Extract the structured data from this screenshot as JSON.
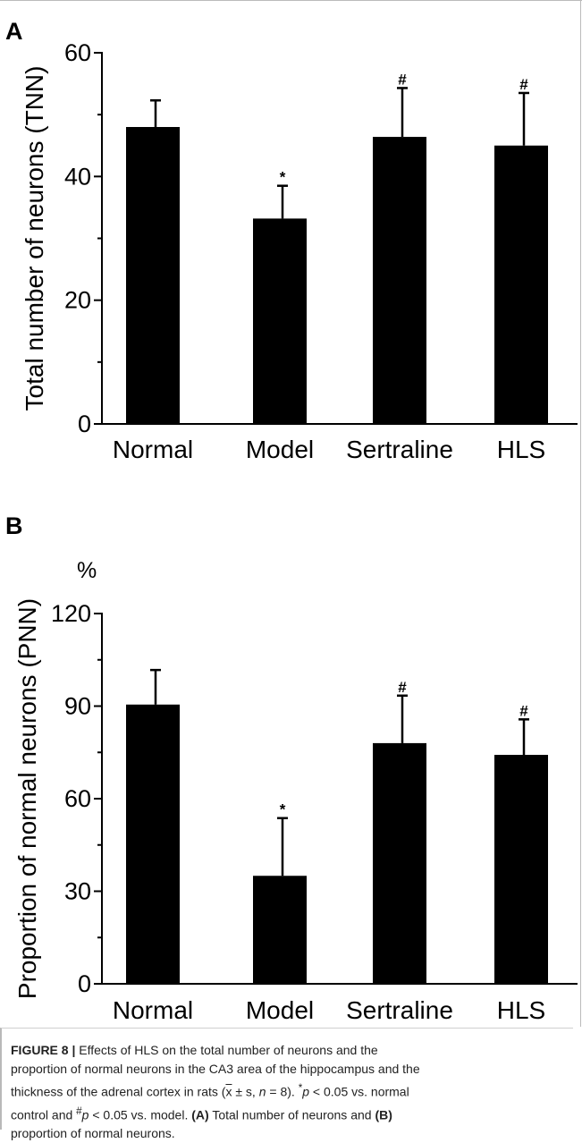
{
  "chart_data": [
    {
      "type": "bar",
      "panel": "A",
      "categories": [
        "Normal",
        "Model",
        "Sertraline",
        "HLS"
      ],
      "values": [
        48,
        33.2,
        46.4,
        45
      ],
      "errors": [
        4.3,
        5.3,
        7.9,
        8.5
      ],
      "annotations": [
        "",
        "*",
        "#",
        "#"
      ],
      "ylabel": "Total number of neurons (TNN)",
      "ylim": [
        0,
        60
      ],
      "yticks": [
        0,
        20,
        40,
        60
      ],
      "grid": false,
      "bar_color": "#000000"
    },
    {
      "type": "bar",
      "panel": "B",
      "categories": [
        "Normal",
        "Model",
        "Sertraline",
        "HLS"
      ],
      "values": [
        90.5,
        35,
        78,
        74.2
      ],
      "errors": [
        11.2,
        18.7,
        15.4,
        11.5
      ],
      "annotations": [
        "",
        "*",
        "#",
        "#"
      ],
      "ylabel": "Proportion of normal neurons (PNN)",
      "unit": "%",
      "ylim": [
        0,
        120
      ],
      "yticks": [
        0,
        30,
        60,
        90,
        120
      ],
      "grid": false,
      "bar_color": "#000000"
    }
  ],
  "caption": {
    "figure_label": "FIGURE 8 |",
    "line1": "Effects of HLS on the total number of neurons and the",
    "line2": "proportion of normal neurons in the CA3 area of the hippocampus and the",
    "line3a": "thickness of the adrenal cortex in rats (",
    "xbar": "x",
    "line3b": " ± s, ",
    "n_var": "n",
    "line3c": " = 8). ",
    "star": "*",
    "p1": "p",
    "line3d": " < 0.05 vs. normal",
    "line4a": "control and ",
    "hash": "#",
    "p2": "p",
    "line4b": " < 0.05 vs. model. ",
    "ref_a": "(A)",
    "line4c": " Total number of neurons and ",
    "ref_b": "(B)",
    "line5": "proportion of normal neurons."
  }
}
